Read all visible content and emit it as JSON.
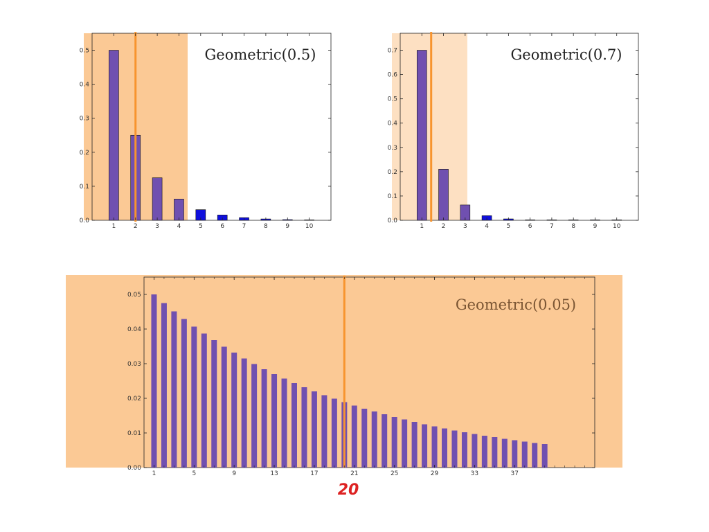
{
  "colors": {
    "bar_blue": "#1010dd",
    "bar_purple": "#7050b0",
    "shade_dark": "#fbc995",
    "shade_light": "#fde0c2",
    "mean_line": "#f7942e",
    "annotation": "#dd2222"
  },
  "chart_data": [
    {
      "type": "bar",
      "title": "Geometric(0.5)",
      "categories": [
        "1",
        "2",
        "3",
        "4",
        "5",
        "6",
        "7",
        "8",
        "9",
        "10"
      ],
      "values": [
        0.5,
        0.25,
        0.125,
        0.0625,
        0.03125,
        0.015625,
        0.0078125,
        0.00390625,
        0.001953,
        0.000977
      ],
      "xlim": [
        0,
        11
      ],
      "ylim": [
        0,
        0.55
      ],
      "yticks": [
        "0.0",
        "0.1",
        "0.2",
        "0.3",
        "0.4",
        "0.5"
      ],
      "ytick_values": [
        0,
        0.1,
        0.2,
        0.3,
        0.4,
        0.5
      ],
      "mean": 2,
      "shade_range": [
        0,
        4.4
      ],
      "shade_style": "dark",
      "grid": false
    },
    {
      "type": "bar",
      "title": "Geometric(0.7)",
      "categories": [
        "1",
        "2",
        "3",
        "4",
        "5",
        "6",
        "7",
        "8",
        "9",
        "10"
      ],
      "values": [
        0.7,
        0.21,
        0.063,
        0.0189,
        0.00567,
        0.0017,
        0.00051,
        0.000153,
        4.6e-05,
        1.4e-05
      ],
      "xlim": [
        0,
        11
      ],
      "ylim": [
        0,
        0.77
      ],
      "yticks": [
        "0.0",
        "0.1",
        "0.2",
        "0.3",
        "0.4",
        "0.5",
        "0.6",
        "0.7"
      ],
      "ytick_values": [
        0,
        0.1,
        0.2,
        0.3,
        0.4,
        0.5,
        0.6,
        0.7
      ],
      "mean": 1.43,
      "shade_range": [
        0,
        3.1
      ],
      "shade_style": "light",
      "grid": false
    },
    {
      "type": "bar",
      "title": "Geometric(0.05)",
      "categories": [
        "1",
        "2",
        "3",
        "4",
        "5",
        "6",
        "7",
        "8",
        "9",
        "10",
        "11",
        "12",
        "13",
        "14",
        "15",
        "16",
        "17",
        "18",
        "19",
        "20",
        "21",
        "22",
        "23",
        "24",
        "25",
        "26",
        "27",
        "28",
        "29",
        "30",
        "31",
        "32",
        "33",
        "34",
        "35",
        "36",
        "37",
        "38",
        "39",
        "40"
      ],
      "x_tick_labels": [
        "1",
        "5",
        "9",
        "13",
        "17",
        "21",
        "25",
        "29",
        "33",
        "37"
      ],
      "x_tick_values": [
        1,
        5,
        9,
        13,
        17,
        21,
        25,
        29,
        33,
        37
      ],
      "values": [
        0.05,
        0.0475,
        0.0451,
        0.0429,
        0.0407,
        0.0387,
        0.0368,
        0.0349,
        0.0332,
        0.0315,
        0.0299,
        0.0284,
        0.027,
        0.0257,
        0.0244,
        0.0232,
        0.022,
        0.0209,
        0.0199,
        0.0189,
        0.0179,
        0.017,
        0.0162,
        0.0154,
        0.0146,
        0.0139,
        0.0132,
        0.0125,
        0.0119,
        0.0113,
        0.0107,
        0.0102,
        0.0097,
        0.0092,
        0.0088,
        0.0083,
        0.0079,
        0.0075,
        0.0071,
        0.0068
      ],
      "xlim": [
        0,
        45
      ],
      "ylim": [
        0,
        0.055
      ],
      "yticks": [
        "0.00",
        "0.01",
        "0.02",
        "0.03",
        "0.04",
        "0.05"
      ],
      "ytick_values": [
        0,
        0.01,
        0.02,
        0.03,
        0.04,
        0.05
      ],
      "mean": 20,
      "shade_style": "full",
      "grid": false,
      "annotation": "20"
    }
  ]
}
